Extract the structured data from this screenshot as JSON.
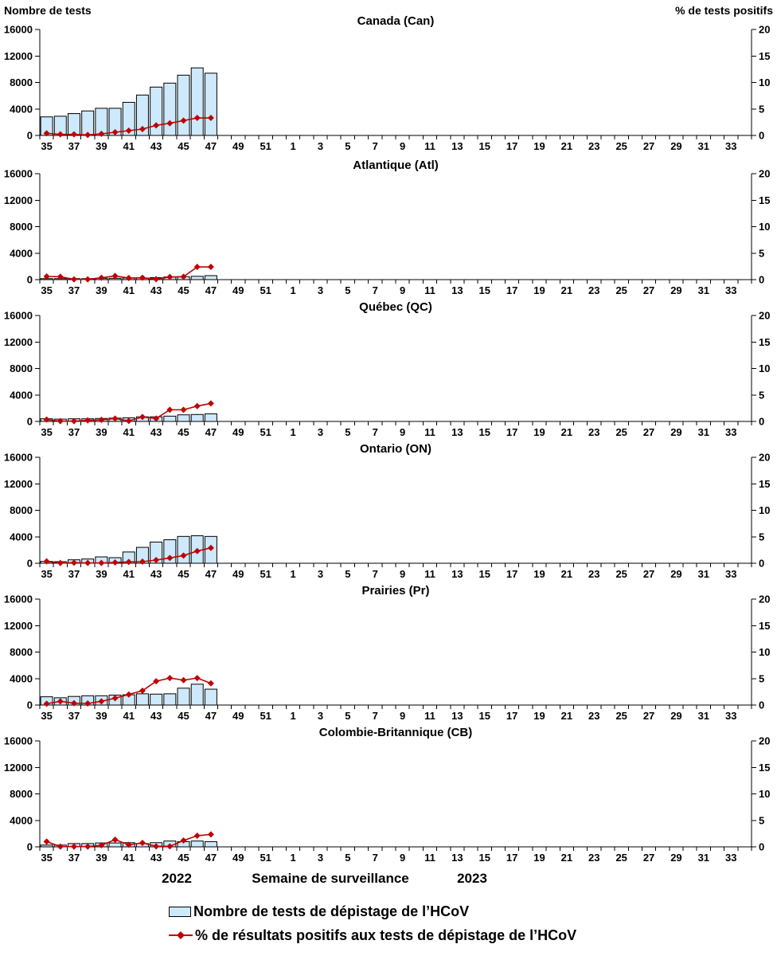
{
  "panel_header": {
    "left_axis_title": "Nombre de tests",
    "right_axis_title": "% de tests positifs"
  },
  "x_axis": {
    "title": "Semaine de surveillance",
    "year_left": "2022",
    "year_right": "2023",
    "weeks": [
      35,
      36,
      37,
      38,
      39,
      40,
      41,
      42,
      43,
      44,
      45,
      46,
      47,
      48,
      49,
      50,
      51,
      52,
      1,
      2,
      3,
      4,
      5,
      6,
      7,
      8,
      9,
      10,
      11,
      12,
      13,
      14,
      15,
      16,
      17,
      18,
      19,
      20,
      21,
      22,
      23,
      24,
      25,
      26,
      27,
      28,
      29,
      30,
      31,
      32,
      33,
      34
    ],
    "labeled_weeks": [
      35,
      37,
      39,
      41,
      43,
      45,
      47,
      49,
      51,
      1,
      3,
      5,
      7,
      9,
      11,
      13,
      15,
      17,
      19,
      21,
      23,
      25,
      27,
      29,
      31,
      33
    ]
  },
  "left_axis": {
    "ticks": [
      0,
      4000,
      8000,
      12000,
      16000
    ],
    "max": 16000
  },
  "right_axis": {
    "ticks": [
      0,
      5,
      10,
      15,
      20
    ],
    "max": 20
  },
  "legend": [
    {
      "label": "Nombre de tests de dépistage de l’HCoV",
      "swatch": "bar",
      "color": "#CDE9FB",
      "border": "#000000"
    },
    {
      "label": "% de résultats positifs aux tests de dépistage de l’HCoV",
      "swatch": "line-diamond",
      "color": "#C00000"
    }
  ],
  "chart_data": [
    {
      "type": "bar+line",
      "title": "Canada (Can)",
      "weeks_with_data": [
        35,
        36,
        37,
        38,
        39,
        40,
        41,
        42,
        43,
        44,
        45,
        46,
        47
      ],
      "left_ylim": [
        0,
        16000
      ],
      "right_ylim": [
        0,
        20
      ],
      "series": [
        {
          "name": "Nombre de tests de dépistage de l’HCoV",
          "type": "bar",
          "axis": "left",
          "values": [
            2800,
            2900,
            3300,
            3700,
            4100,
            4100,
            5000,
            6100,
            7300,
            7900,
            9100,
            10200,
            9400
          ]
        },
        {
          "name": "% de résultats positifs aux tests de dépistage de l’HCoV",
          "type": "line",
          "axis": "right",
          "values": [
            0.4,
            0.2,
            0.2,
            0.1,
            0.3,
            0.6,
            0.9,
            1.2,
            1.9,
            2.3,
            2.8,
            3.3,
            3.3
          ]
        }
      ]
    },
    {
      "type": "bar+line",
      "title": "Atlantique (Atl)",
      "weeks_with_data": [
        35,
        36,
        37,
        38,
        39,
        40,
        41,
        42,
        43,
        44,
        45,
        46,
        47
      ],
      "left_ylim": [
        0,
        16000
      ],
      "right_ylim": [
        0,
        20
      ],
      "series": [
        {
          "name": "Nombre de tests de dépistage de l’HCoV",
          "type": "bar",
          "axis": "left",
          "values": [
            150,
            150,
            150,
            150,
            200,
            200,
            250,
            250,
            300,
            400,
            450,
            500,
            600
          ]
        },
        {
          "name": "% de résultats positifs aux tests de dépistage de l’HCoV",
          "type": "line",
          "axis": "right",
          "values": [
            0.6,
            0.55,
            0.05,
            0.05,
            0.35,
            0.7,
            0.3,
            0.35,
            0.1,
            0.5,
            0.55,
            2.4,
            2.4
          ]
        }
      ]
    },
    {
      "type": "bar+line",
      "title": "Québec (QC)",
      "weeks_with_data": [
        35,
        36,
        37,
        38,
        39,
        40,
        41,
        42,
        43,
        44,
        45,
        46,
        47
      ],
      "left_ylim": [
        0,
        16000
      ],
      "right_ylim": [
        0,
        20
      ],
      "series": [
        {
          "name": "Nombre de tests de dépistage de l’HCoV",
          "type": "bar",
          "axis": "left",
          "values": [
            400,
            350,
            400,
            400,
            450,
            500,
            550,
            700,
            700,
            800,
            1000,
            1050,
            1150
          ]
        },
        {
          "name": "% de résultats positifs aux tests de dépistage de l’HCoV",
          "type": "line",
          "axis": "right",
          "values": [
            0.35,
            0.05,
            0.05,
            0.2,
            0.3,
            0.55,
            0.1,
            0.85,
            0.55,
            2.2,
            2.2,
            2.9,
            3.4
          ]
        }
      ]
    },
    {
      "type": "bar+line",
      "title": "Ontario (ON)",
      "weeks_with_data": [
        35,
        36,
        37,
        38,
        39,
        40,
        41,
        42,
        43,
        44,
        45,
        46,
        47
      ],
      "left_ylim": [
        0,
        16000
      ],
      "right_ylim": [
        0,
        20
      ],
      "series": [
        {
          "name": "Nombre de tests de dépistage de l’HCoV",
          "type": "bar",
          "axis": "left",
          "values": [
            280,
            240,
            520,
            640,
            960,
            840,
            1700,
            2400,
            3200,
            3550,
            4050,
            4150,
            4050
          ]
        },
        {
          "name": "% de résultats positifs aux tests de dépistage de l’HCoV",
          "type": "line",
          "axis": "right",
          "values": [
            0.35,
            0.05,
            0.1,
            0.05,
            0.05,
            0.15,
            0.25,
            0.3,
            0.6,
            1.0,
            1.45,
            2.3,
            2.9
          ]
        }
      ]
    },
    {
      "type": "bar+line",
      "title": "Prairies (Pr)",
      "weeks_with_data": [
        35,
        36,
        37,
        38,
        39,
        40,
        41,
        42,
        43,
        44,
        45,
        46,
        47
      ],
      "left_ylim": [
        0,
        16000
      ],
      "right_ylim": [
        0,
        20
      ],
      "series": [
        {
          "name": "Nombre de tests de dépistage de l’HCoV",
          "type": "bar",
          "axis": "left",
          "values": [
            1250,
            1100,
            1300,
            1400,
            1400,
            1500,
            1550,
            1700,
            1650,
            1700,
            2550,
            3150,
            2400
          ]
        },
        {
          "name": "% de résultats positifs aux tests de dépistage de l’HCoV",
          "type": "line",
          "axis": "right",
          "values": [
            0.25,
            0.7,
            0.35,
            0.3,
            0.7,
            1.3,
            2.0,
            2.7,
            4.5,
            5.1,
            4.7,
            5.1,
            4.1
          ]
        }
      ]
    },
    {
      "type": "bar+line",
      "title": "Colombie-Britannique (CB)",
      "weeks_with_data": [
        35,
        36,
        37,
        38,
        39,
        40,
        41,
        42,
        43,
        44,
        45,
        46,
        47
      ],
      "left_ylim": [
        0,
        16000
      ],
      "right_ylim": [
        0,
        20
      ],
      "series": [
        {
          "name": "Nombre de tests de dépistage de l’HCoV",
          "type": "bar",
          "axis": "left",
          "values": [
            270,
            270,
            500,
            500,
            590,
            590,
            630,
            500,
            630,
            880,
            790,
            880,
            790
          ]
        },
        {
          "name": "% de résultats positifs aux tests de dépistage de l’HCoV",
          "type": "line",
          "axis": "right",
          "values": [
            1.0,
            0.05,
            0.05,
            0.05,
            0.3,
            1.35,
            0.4,
            0.75,
            0.1,
            0.1,
            1.2,
            2.1,
            2.35
          ]
        }
      ]
    }
  ]
}
